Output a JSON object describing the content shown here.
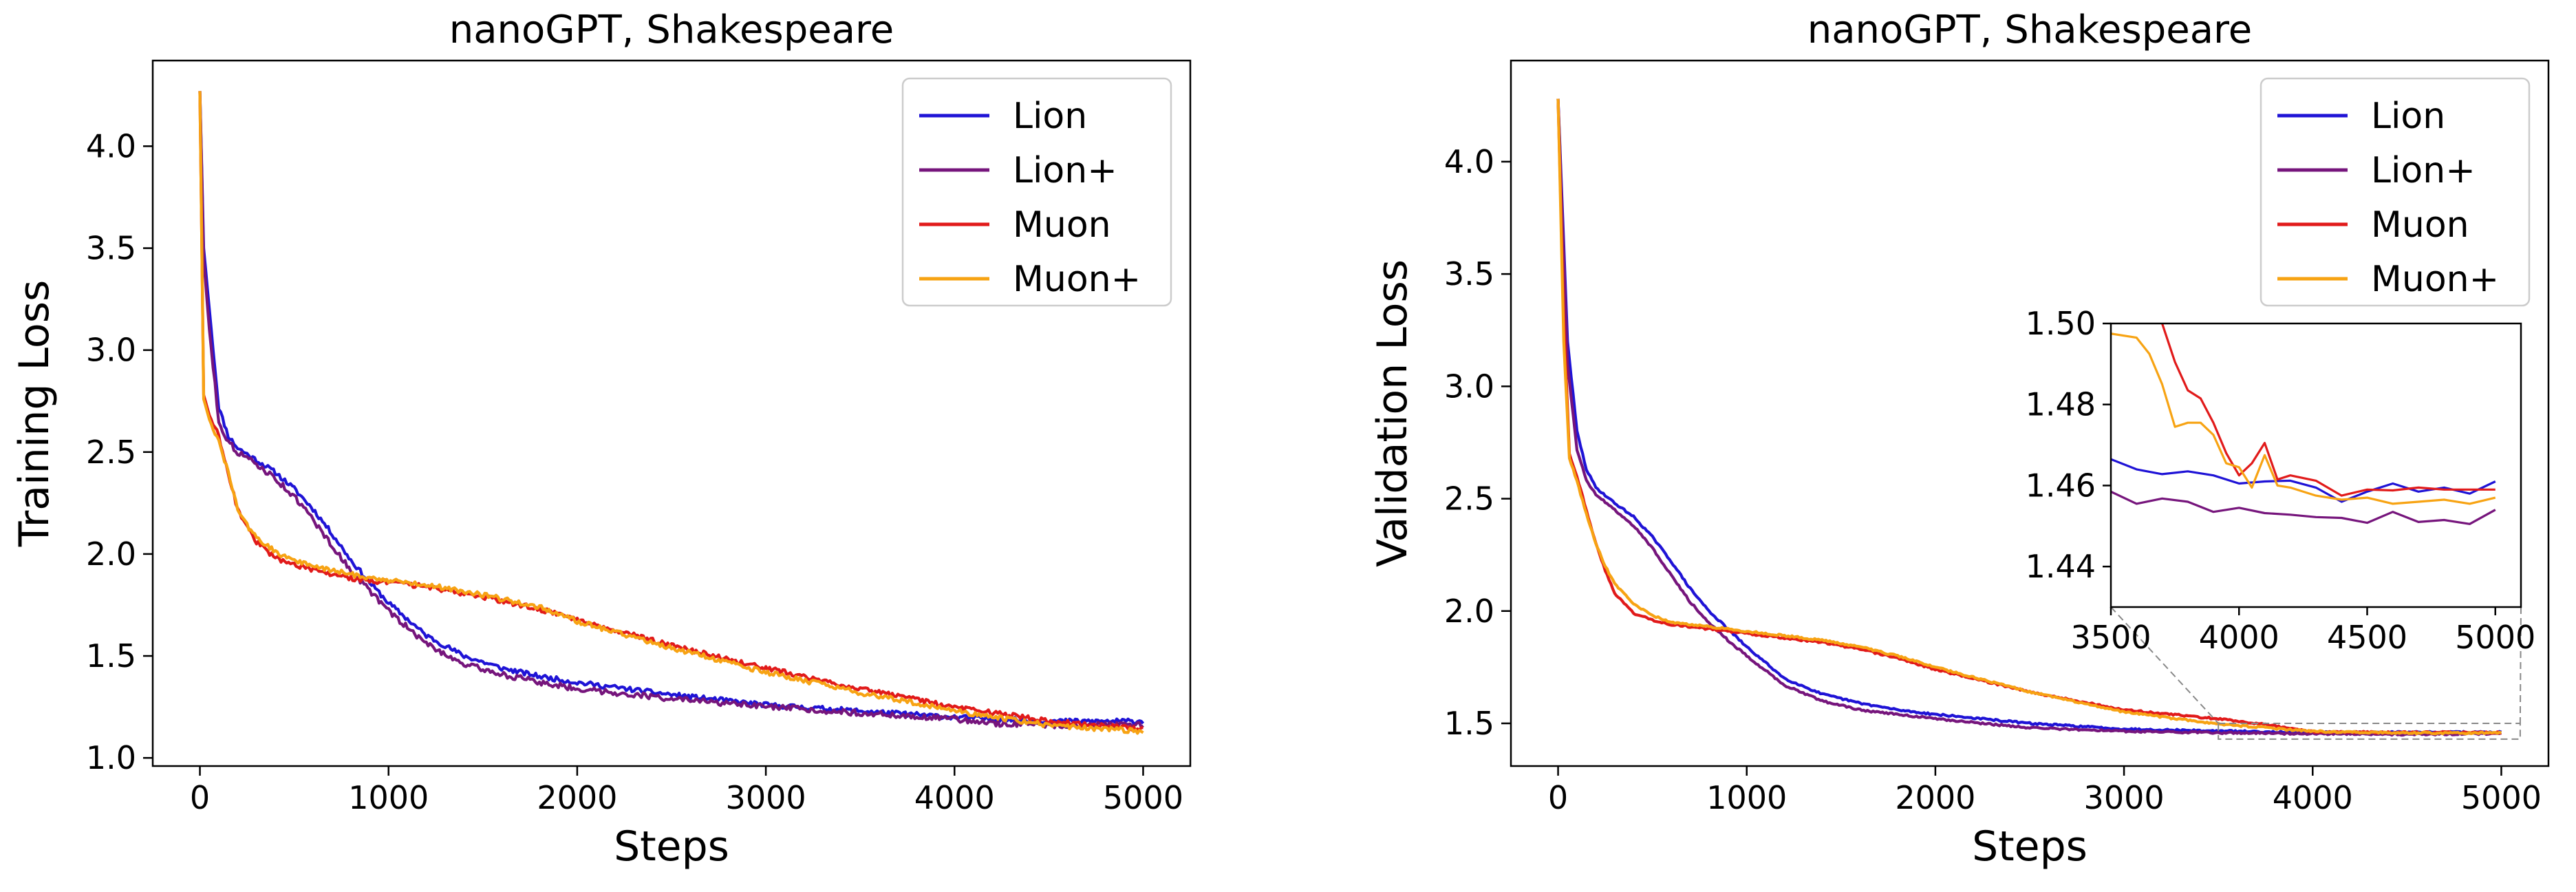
{
  "chart_data": [
    {
      "type": "line",
      "title": "nanoGPT, Shakespeare",
      "xlabel": "Steps",
      "ylabel": "Training Loss",
      "xlim": [
        -250,
        5250
      ],
      "ylim": [
        0.96,
        4.42
      ],
      "xticks": [
        0,
        1000,
        2000,
        3000,
        4000,
        5000
      ],
      "yticks": [
        1.0,
        1.5,
        2.0,
        2.5,
        3.0,
        3.5,
        4.0
      ],
      "xtick_labels": [
        "0",
        "1000",
        "2000",
        "3000",
        "4000",
        "5000"
      ],
      "ytick_labels": [
        "1.0",
        "1.5",
        "2.0",
        "2.5",
        "3.0",
        "3.5",
        "4.0"
      ],
      "grid": false,
      "legend": "top-right",
      "series": [
        {
          "name": "Lion",
          "color": "#1f13d6",
          "noise": 0.012,
          "x": [
            0,
            20,
            50,
            100,
            150,
            200,
            300,
            400,
            500,
            600,
            700,
            800,
            900,
            1000,
            1200,
            1400,
            1600,
            1800,
            2000,
            2500,
            3000,
            3500,
            4000,
            4500,
            5000
          ],
          "y": [
            4.27,
            3.5,
            3.2,
            2.72,
            2.58,
            2.52,
            2.46,
            2.4,
            2.32,
            2.22,
            2.1,
            1.97,
            1.86,
            1.76,
            1.6,
            1.5,
            1.44,
            1.4,
            1.37,
            1.31,
            1.26,
            1.23,
            1.2,
            1.18,
            1.18
          ]
        },
        {
          "name": "Lion+",
          "color": "#76157c",
          "noise": 0.014,
          "x": [
            0,
            20,
            50,
            100,
            150,
            200,
            300,
            400,
            500,
            600,
            700,
            800,
            900,
            1000,
            1200,
            1400,
            1600,
            1800,
            2000,
            2500,
            3000,
            3500,
            4000,
            4200,
            4500,
            5000
          ],
          "y": [
            4.27,
            3.45,
            3.1,
            2.65,
            2.55,
            2.5,
            2.44,
            2.37,
            2.28,
            2.17,
            2.04,
            1.92,
            1.82,
            1.72,
            1.56,
            1.46,
            1.41,
            1.37,
            1.34,
            1.29,
            1.25,
            1.22,
            1.19,
            1.17,
            1.16,
            1.16
          ]
        },
        {
          "name": "Muon",
          "color": "#e11a1a",
          "noise": 0.012,
          "x": [
            0,
            20,
            50,
            100,
            150,
            200,
            250,
            300,
            400,
            500,
            600,
            800,
            1000,
            1200,
            1500,
            1800,
            2000,
            2500,
            3000,
            3500,
            4000,
            4500,
            5000
          ],
          "y": [
            4.27,
            2.78,
            2.68,
            2.58,
            2.4,
            2.22,
            2.13,
            2.06,
            1.98,
            1.95,
            1.92,
            1.88,
            1.86,
            1.84,
            1.79,
            1.73,
            1.68,
            1.55,
            1.44,
            1.34,
            1.25,
            1.18,
            1.14
          ]
        },
        {
          "name": "Muon+",
          "color": "#f7a313",
          "noise": 0.012,
          "x": [
            0,
            20,
            50,
            100,
            150,
            200,
            250,
            300,
            400,
            500,
            600,
            800,
            1000,
            1200,
            1500,
            1800,
            2000,
            2500,
            3000,
            3500,
            4000,
            4500,
            5000
          ],
          "y": [
            4.27,
            2.76,
            2.66,
            2.55,
            2.4,
            2.22,
            2.14,
            2.08,
            2.01,
            1.97,
            1.94,
            1.9,
            1.87,
            1.85,
            1.8,
            1.74,
            1.67,
            1.54,
            1.42,
            1.32,
            1.23,
            1.16,
            1.13
          ]
        }
      ]
    },
    {
      "type": "line",
      "title": "nanoGPT, Shakespeare",
      "xlabel": "Steps",
      "ylabel": "Validation Loss",
      "xlim": [
        -250,
        5250
      ],
      "ylim": [
        1.31,
        4.45
      ],
      "xticks": [
        0,
        1000,
        2000,
        3000,
        4000,
        5000
      ],
      "yticks": [
        1.5,
        2.0,
        2.5,
        3.0,
        3.5,
        4.0
      ],
      "xtick_labels": [
        "0",
        "1000",
        "2000",
        "3000",
        "4000",
        "5000"
      ],
      "ytick_labels": [
        "1.5",
        "2.0",
        "2.5",
        "3.0",
        "3.5",
        "4.0"
      ],
      "grid": false,
      "legend": "top-right",
      "inset": {
        "xlim": [
          3500,
          5100
        ],
        "ylim": [
          1.43,
          1.5
        ],
        "xticks": [
          3500,
          4000,
          4500,
          5000
        ],
        "yticks": [
          1.44,
          1.46,
          1.48,
          1.5
        ],
        "xtick_labels": [
          "3500",
          "4000",
          "4500",
          "5000"
        ],
        "ytick_labels": [
          "1.44",
          "1.46",
          "1.48",
          "1.50"
        ],
        "indicated_region": {
          "x": [
            3500,
            5100
          ],
          "y": [
            1.43,
            1.5
          ]
        },
        "series": [
          {
            "name": "Lion",
            "color": "#1f13d6",
            "x": [
              3500,
              3600,
              3700,
              3800,
              3900,
              4000,
              4100,
              4200,
              4300,
              4400,
              4500,
              4600,
              4700,
              4800,
              4900,
              5000
            ],
            "y": [
              1.4665,
              1.464,
              1.4628,
              1.4635,
              1.4625,
              1.4605,
              1.461,
              1.4612,
              1.4595,
              1.456,
              1.4585,
              1.4605,
              1.4585,
              1.4595,
              1.458,
              1.461
            ]
          },
          {
            "name": "Lion+",
            "color": "#76157c",
            "x": [
              3500,
              3600,
              3700,
              3800,
              3900,
              4000,
              4100,
              4200,
              4300,
              4400,
              4500,
              4600,
              4700,
              4800,
              4900,
              5000
            ],
            "y": [
              1.4585,
              1.4555,
              1.4568,
              1.456,
              1.4535,
              1.4545,
              1.4532,
              1.4528,
              1.4522,
              1.452,
              1.4508,
              1.4535,
              1.451,
              1.4515,
              1.4505,
              1.454
            ]
          },
          {
            "name": "Muon",
            "color": "#e11a1a",
            "x": [
              3700,
              3750,
              3800,
              3850,
              3900,
              3950,
              4000,
              4050,
              4100,
              4150,
              4200,
              4300,
              4400,
              4500,
              4600,
              4700,
              4800,
              4900,
              5000
            ],
            "y": [
              1.5,
              1.4905,
              1.4835,
              1.4815,
              1.4755,
              1.468,
              1.4625,
              1.4655,
              1.4705,
              1.4615,
              1.4625,
              1.4612,
              1.4575,
              1.459,
              1.4588,
              1.4595,
              1.459,
              1.459,
              1.459
            ]
          },
          {
            "name": "Muon+",
            "color": "#f7a313",
            "x": [
              3500,
              3600,
              3650,
              3700,
              3750,
              3800,
              3850,
              3900,
              3950,
              4000,
              4050,
              4100,
              4150,
              4200,
              4300,
              4400,
              4500,
              4600,
              4700,
              4800,
              4900,
              5000
            ],
            "y": [
              1.4975,
              1.4965,
              1.4925,
              1.485,
              1.4745,
              1.4755,
              1.4755,
              1.4725,
              1.4655,
              1.4645,
              1.4595,
              1.4675,
              1.46,
              1.4595,
              1.4575,
              1.4565,
              1.457,
              1.4555,
              1.456,
              1.4565,
              1.4555,
              1.457
            ]
          }
        ]
      },
      "series": [
        {
          "name": "Lion",
          "color": "#1f13d6",
          "noise": 0.004,
          "x": [
            0,
            50,
            100,
            150,
            200,
            300,
            400,
            500,
            600,
            700,
            800,
            900,
            1000,
            1200,
            1400,
            1600,
            1800,
            2000,
            2500,
            3000,
            3500,
            4000,
            4500,
            5000
          ],
          "y": [
            4.28,
            3.2,
            2.8,
            2.63,
            2.55,
            2.48,
            2.42,
            2.33,
            2.22,
            2.1,
            2.0,
            1.92,
            1.84,
            1.7,
            1.63,
            1.59,
            1.56,
            1.54,
            1.5,
            1.475,
            1.466,
            1.46,
            1.46,
            1.461
          ]
        },
        {
          "name": "Lion+",
          "color": "#76157c",
          "noise": 0.004,
          "x": [
            0,
            50,
            100,
            150,
            200,
            300,
            400,
            500,
            600,
            700,
            800,
            900,
            1000,
            1200,
            1400,
            1600,
            1800,
            2000,
            2500,
            3000,
            3500,
            4000,
            4500,
            5000
          ],
          "y": [
            4.28,
            3.1,
            2.72,
            2.58,
            2.52,
            2.45,
            2.38,
            2.28,
            2.16,
            2.04,
            1.95,
            1.87,
            1.8,
            1.67,
            1.6,
            1.56,
            1.54,
            1.52,
            1.48,
            1.465,
            1.458,
            1.454,
            1.451,
            1.454
          ]
        },
        {
          "name": "Muon",
          "color": "#e11a1a",
          "noise": 0.004,
          "x": [
            0,
            30,
            60,
            100,
            150,
            200,
            250,
            300,
            400,
            500,
            600,
            800,
            1000,
            1200,
            1400,
            1600,
            1800,
            2000,
            2500,
            3000,
            3500,
            3700,
            4000,
            4500,
            5000
          ],
          "y": [
            4.28,
            3.3,
            2.7,
            2.6,
            2.45,
            2.3,
            2.18,
            2.08,
            1.99,
            1.96,
            1.94,
            1.92,
            1.9,
            1.88,
            1.86,
            1.83,
            1.79,
            1.74,
            1.64,
            1.56,
            1.52,
            1.5,
            1.463,
            1.459,
            1.459
          ]
        },
        {
          "name": "Muon+",
          "color": "#f7a313",
          "noise": 0.004,
          "x": [
            0,
            30,
            60,
            100,
            150,
            200,
            250,
            300,
            400,
            500,
            600,
            800,
            1000,
            1200,
            1400,
            1600,
            1800,
            2000,
            2500,
            3000,
            3500,
            4000,
            4500,
            5000
          ],
          "y": [
            4.28,
            3.2,
            2.68,
            2.58,
            2.43,
            2.3,
            2.2,
            2.12,
            2.03,
            1.98,
            1.95,
            1.93,
            1.91,
            1.89,
            1.87,
            1.84,
            1.8,
            1.75,
            1.64,
            1.55,
            1.497,
            1.464,
            1.457,
            1.457
          ]
        }
      ]
    }
  ]
}
